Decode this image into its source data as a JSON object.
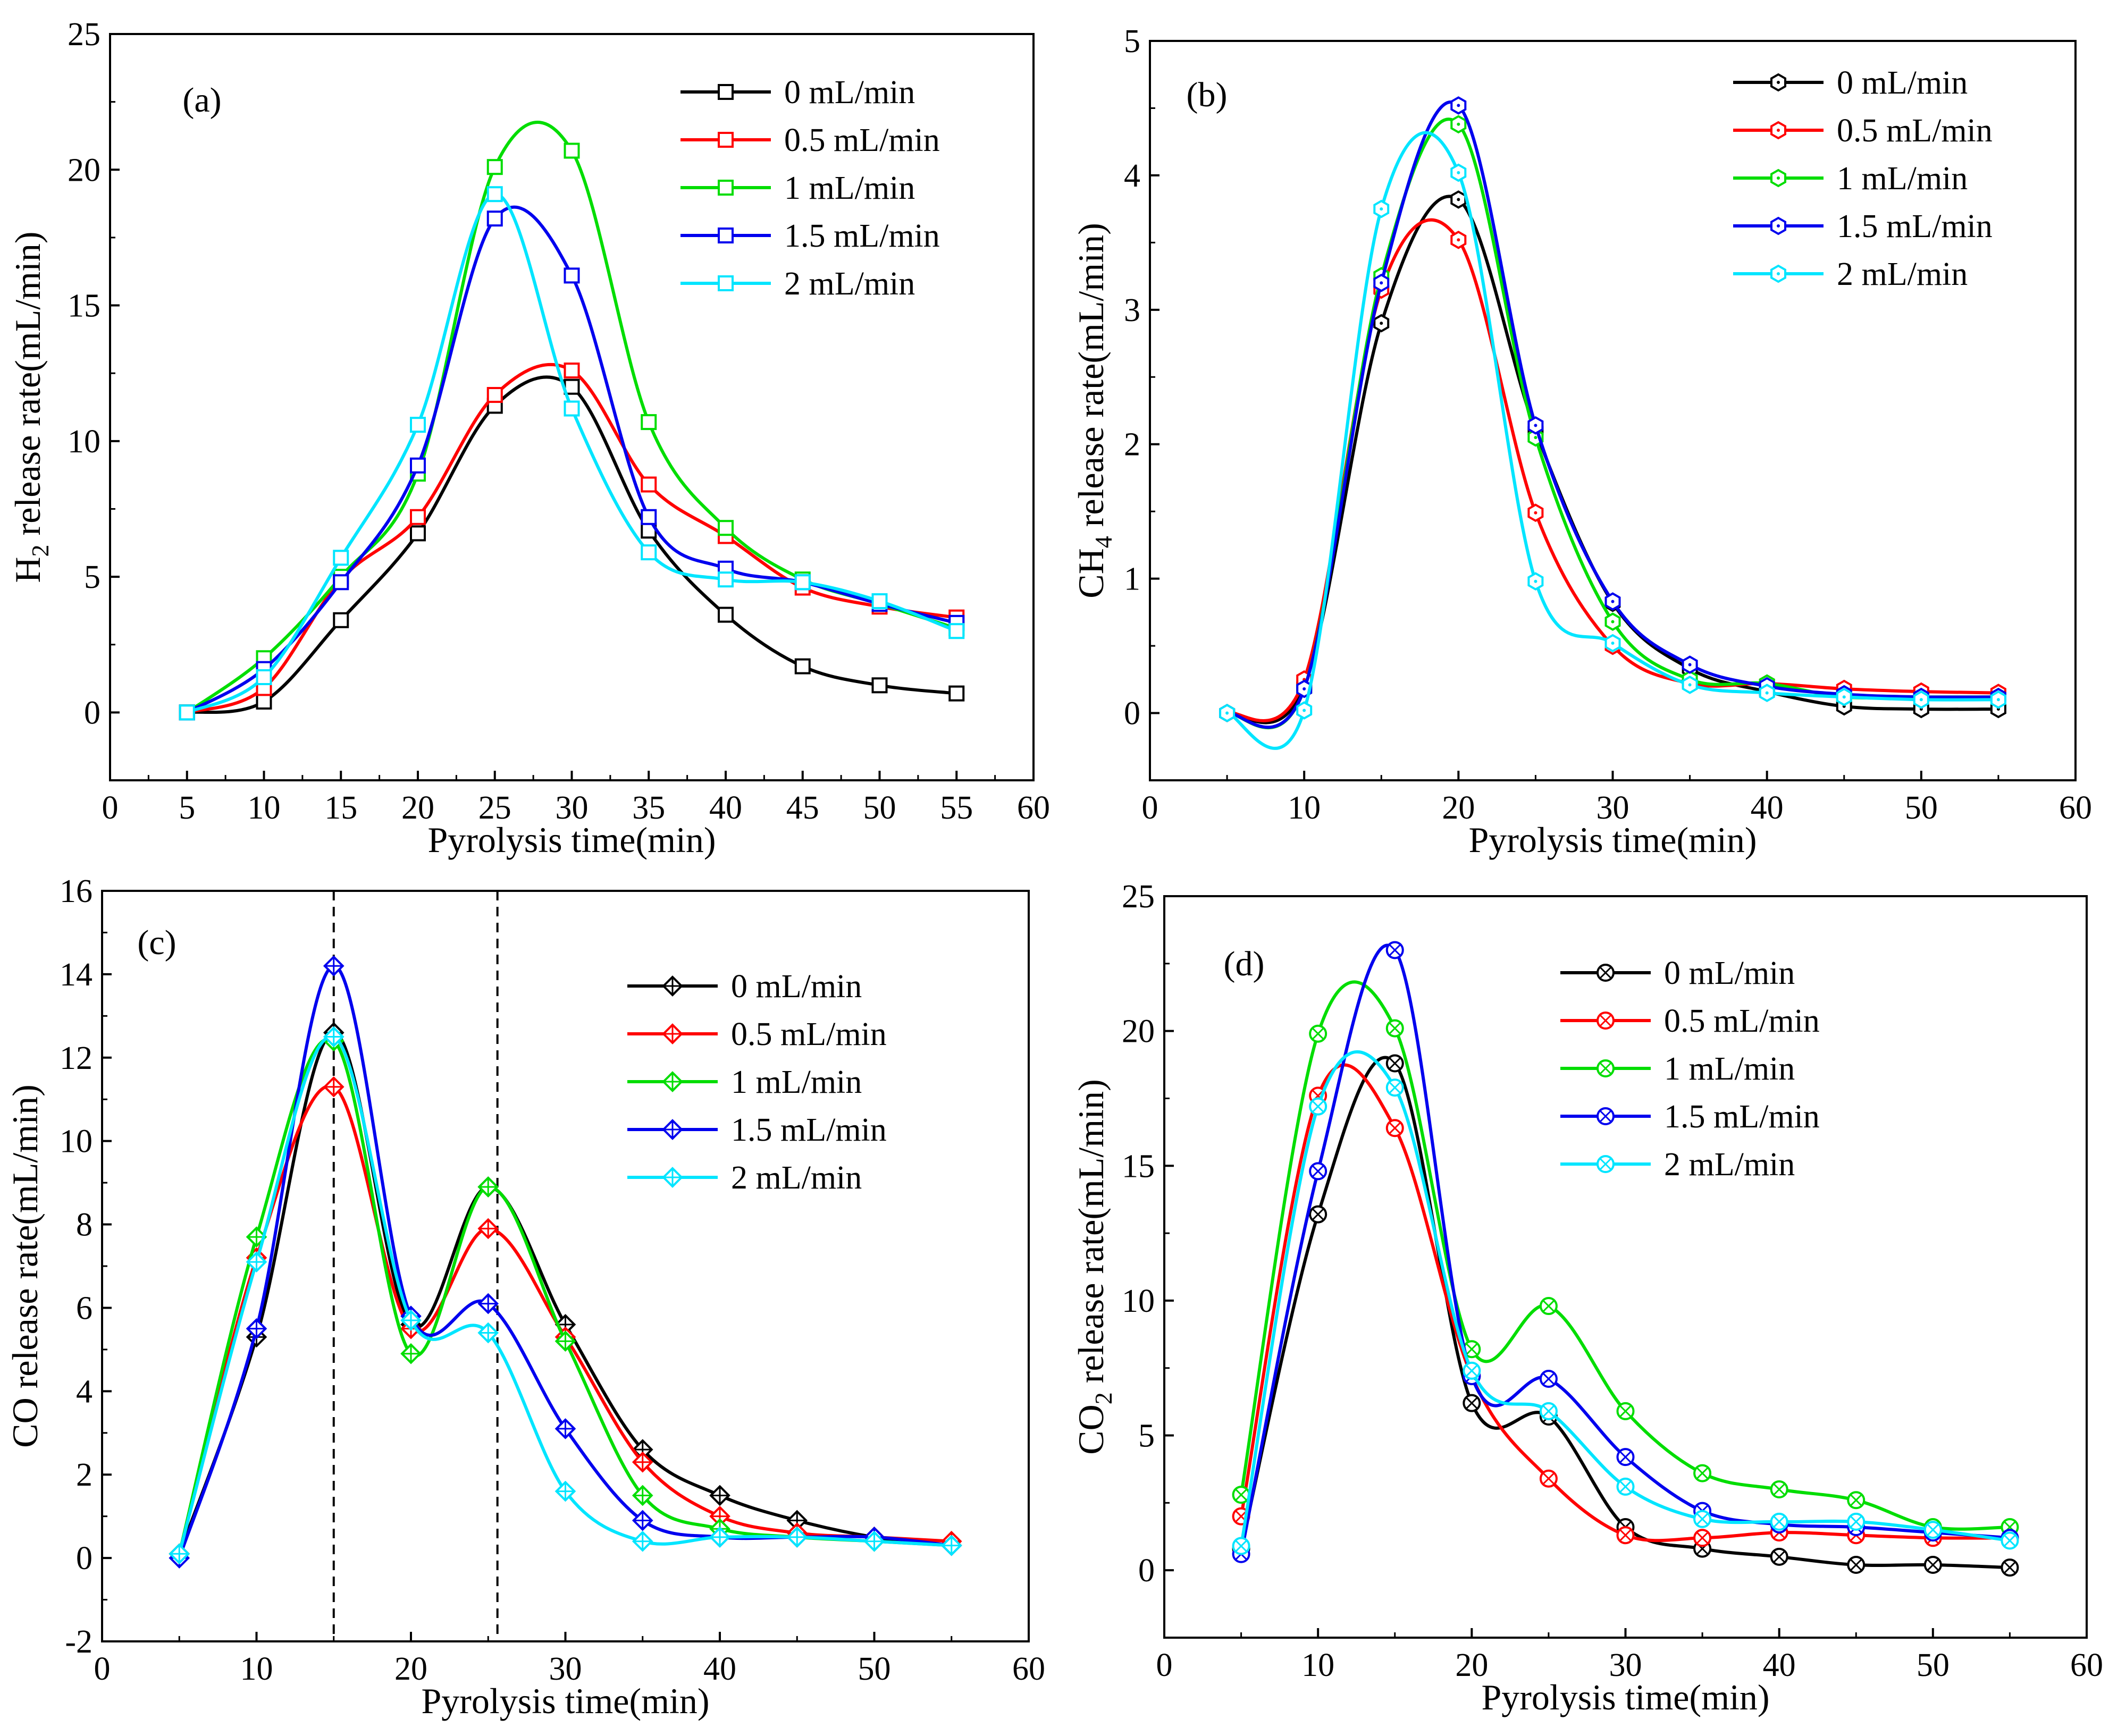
{
  "chart_data": [
    {
      "type": "line",
      "panel_label": "(a)",
      "xlabel": "Pyrolysis time(min)",
      "ylabel_main": "H",
      "ylabel_sub": "2",
      "ylabel_rest": " release rate(mL/min)",
      "xlim": [
        0,
        60
      ],
      "ylim": [
        -2.5,
        25
      ],
      "xticks": [
        0,
        5,
        10,
        15,
        20,
        25,
        30,
        35,
        40,
        45,
        50,
        55,
        60
      ],
      "yticks": [
        0,
        5,
        10,
        15,
        20,
        25
      ],
      "marker": "square",
      "legend_position": "top-right",
      "x": [
        5,
        10,
        15,
        20,
        25,
        30,
        35,
        40,
        45,
        50,
        55
      ],
      "series": [
        {
          "name": "0 mL/min",
          "color": "#000000",
          "values": [
            0,
            0.4,
            3.4,
            6.6,
            11.3,
            12.0,
            6.7,
            3.6,
            1.7,
            1.0,
            0.7
          ]
        },
        {
          "name": "0.5 mL/min",
          "color": "#ff0000",
          "values": [
            0,
            0.9,
            4.9,
            7.2,
            11.7,
            12.6,
            8.4,
            6.5,
            4.6,
            3.9,
            3.5
          ]
        },
        {
          "name": "1 mL/min",
          "color": "#00dd00",
          "values": [
            0,
            2.0,
            5.0,
            8.8,
            20.1,
            20.7,
            10.7,
            6.8,
            4.9,
            4.0,
            3.1
          ]
        },
        {
          "name": "1.5 mL/min",
          "color": "#0000ee",
          "values": [
            0,
            1.6,
            4.8,
            9.1,
            18.2,
            16.1,
            7.2,
            5.3,
            4.8,
            4.0,
            3.3
          ]
        },
        {
          "name": "2 mL/min",
          "color": "#00e5ff",
          "values": [
            0,
            1.3,
            5.7,
            10.6,
            19.1,
            11.2,
            5.9,
            4.9,
            4.8,
            4.1,
            3.0
          ]
        }
      ]
    },
    {
      "type": "line",
      "panel_label": "(b)",
      "xlabel": "Pyrolysis time(min)",
      "ylabel_main": "CH",
      "ylabel_sub": "4",
      "ylabel_rest": " release rate(mL/min)",
      "xlim": [
        0,
        60
      ],
      "ylim": [
        -0.5,
        5
      ],
      "xticks": [
        0,
        10,
        20,
        30,
        40,
        50,
        60
      ],
      "yticks": [
        0,
        1,
        2,
        3,
        4,
        5
      ],
      "marker": "hexagon",
      "legend_position": "top-right",
      "x": [
        5,
        10,
        15,
        20,
        25,
        30,
        35,
        40,
        45,
        50,
        55
      ],
      "series": [
        {
          "name": "0 mL/min",
          "color": "#000000",
          "values": [
            0,
            0.2,
            2.9,
            3.82,
            2.1,
            0.82,
            0.33,
            0.16,
            0.05,
            0.03,
            0.03
          ]
        },
        {
          "name": "0.5 mL/min",
          "color": "#ff0000",
          "values": [
            0,
            0.25,
            3.15,
            3.52,
            1.49,
            0.5,
            0.22,
            0.22,
            0.18,
            0.16,
            0.15
          ]
        },
        {
          "name": "1 mL/min",
          "color": "#00dd00",
          "values": [
            0,
            0.18,
            3.25,
            4.38,
            2.05,
            0.68,
            0.25,
            0.22,
            0.12,
            0.12,
            0.12
          ]
        },
        {
          "name": "1.5 mL/min",
          "color": "#0000ee",
          "values": [
            0,
            0.18,
            3.2,
            4.52,
            2.14,
            0.83,
            0.36,
            0.2,
            0.14,
            0.12,
            0.12
          ]
        },
        {
          "name": "2 mL/min",
          "color": "#00e5ff",
          "values": [
            0,
            0.02,
            3.75,
            4.02,
            0.98,
            0.52,
            0.21,
            0.15,
            0.12,
            0.1,
            0.1
          ]
        }
      ]
    },
    {
      "type": "line",
      "panel_label": "(c)",
      "xlabel": "Pyrolysis time(min)",
      "ylabel_main": "CO release rate(mL/min)",
      "ylabel_sub": "",
      "ylabel_rest": "",
      "xlim": [
        0,
        60
      ],
      "ylim": [
        -2,
        16
      ],
      "xticks": [
        0,
        10,
        20,
        30,
        40,
        50,
        60
      ],
      "yticks": [
        -2,
        0,
        2,
        4,
        6,
        8,
        10,
        12,
        14,
        16
      ],
      "marker": "diamond",
      "legend_position": "top-right",
      "reference_lines_x": [
        15,
        25.6
      ],
      "x": [
        5,
        10,
        15,
        20,
        25,
        30,
        35,
        40,
        45,
        50,
        55
      ],
      "series": [
        {
          "name": "0 mL/min",
          "color": "#000000",
          "values": [
            0.1,
            5.3,
            12.6,
            5.6,
            8.9,
            5.6,
            2.6,
            1.5,
            0.9,
            0.5,
            0.3
          ]
        },
        {
          "name": "0.5 mL/min",
          "color": "#ff0000",
          "values": [
            0.1,
            7.2,
            11.3,
            5.5,
            7.9,
            5.3,
            2.3,
            1.0,
            0.6,
            0.5,
            0.4
          ]
        },
        {
          "name": "1 mL/min",
          "color": "#00dd00",
          "values": [
            0.1,
            7.7,
            12.4,
            4.9,
            8.9,
            5.2,
            1.5,
            0.7,
            0.5,
            0.4,
            0.3
          ]
        },
        {
          "name": "1.5 mL/min",
          "color": "#0000ee",
          "values": [
            0.0,
            5.5,
            14.2,
            5.8,
            6.1,
            3.1,
            0.9,
            0.5,
            0.5,
            0.5,
            0.3
          ]
        },
        {
          "name": "2 mL/min",
          "color": "#00e5ff",
          "values": [
            0.1,
            7.1,
            12.5,
            5.7,
            5.4,
            1.6,
            0.4,
            0.5,
            0.5,
            0.4,
            0.3
          ]
        }
      ]
    },
    {
      "type": "line",
      "panel_label": "(d)",
      "xlabel": "Pyrolysis time(min)",
      "ylabel_main": "CO",
      "ylabel_sub": "2",
      "ylabel_rest": " release rate(mL/min)",
      "xlim": [
        0,
        60
      ],
      "ylim": [
        -2.5,
        25
      ],
      "xticks": [
        0,
        10,
        20,
        30,
        40,
        50,
        60
      ],
      "yticks": [
        0,
        5,
        10,
        15,
        20,
        25
      ],
      "marker": "circle-x",
      "legend_position": "top-right",
      "x": [
        5,
        10,
        15,
        20,
        25,
        30,
        35,
        40,
        45,
        50,
        55
      ],
      "series": [
        {
          "name": "0 mL/min",
          "color": "#000000",
          "values": [
            0.8,
            13.2,
            18.8,
            6.2,
            5.7,
            1.6,
            0.8,
            0.5,
            0.2,
            0.2,
            0.1
          ]
        },
        {
          "name": "0.5 mL/min",
          "color": "#ff0000",
          "values": [
            2.0,
            17.6,
            16.4,
            7.2,
            3.4,
            1.3,
            1.2,
            1.4,
            1.3,
            1.2,
            1.2
          ]
        },
        {
          "name": "1 mL/min",
          "color": "#00dd00",
          "values": [
            2.8,
            19.9,
            20.1,
            8.2,
            9.8,
            5.9,
            3.6,
            3.0,
            2.6,
            1.6,
            1.6
          ]
        },
        {
          "name": "1.5 mL/min",
          "color": "#0000ee",
          "values": [
            0.6,
            14.8,
            23.0,
            7.2,
            7.1,
            4.2,
            2.2,
            1.7,
            1.6,
            1.4,
            1.2
          ]
        },
        {
          "name": "2 mL/min",
          "color": "#00e5ff",
          "values": [
            0.9,
            17.2,
            17.9,
            7.4,
            5.9,
            3.1,
            1.9,
            1.8,
            1.8,
            1.5,
            1.1
          ]
        }
      ]
    }
  ]
}
